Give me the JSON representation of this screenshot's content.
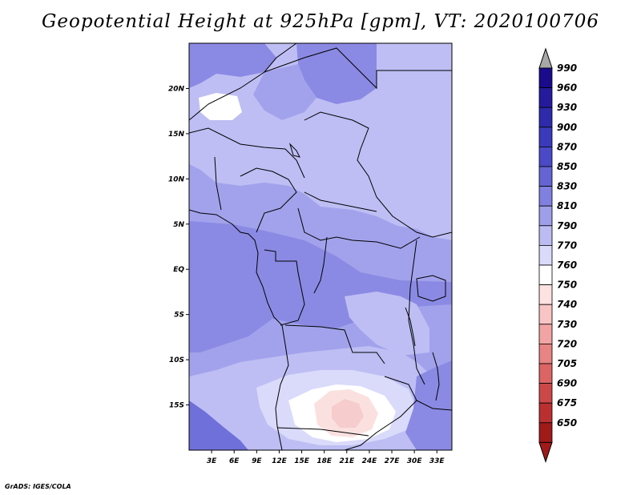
{
  "title": "Geopotential Height at 925hPa [gpm], VT: 2020100706",
  "credit": "GrADS: IGES/COLA",
  "map": {
    "lon_range": [
      0,
      35
    ],
    "lat_range": [
      -20,
      25
    ],
    "lat_ticks": [
      {
        "lat": 20,
        "label": "20N"
      },
      {
        "lat": 15,
        "label": "15N"
      },
      {
        "lat": 10,
        "label": "10N"
      },
      {
        "lat": 5,
        "label": "5N"
      },
      {
        "lat": 0,
        "label": "EQ"
      },
      {
        "lat": -5,
        "label": "5S"
      },
      {
        "lat": -10,
        "label": "10S"
      },
      {
        "lat": -15,
        "label": "15S"
      }
    ],
    "lon_ticks": [
      {
        "lon": 3,
        "label": "3E"
      },
      {
        "lon": 6,
        "label": "6E"
      },
      {
        "lon": 9,
        "label": "9E"
      },
      {
        "lon": 12,
        "label": "12E"
      },
      {
        "lon": 15,
        "label": "15E"
      },
      {
        "lon": 18,
        "label": "18E"
      },
      {
        "lon": 21,
        "label": "21E"
      },
      {
        "lon": 24,
        "label": "24E"
      },
      {
        "lon": 27,
        "label": "27E"
      },
      {
        "lon": 30,
        "label": "30E"
      },
      {
        "lon": 33,
        "label": "33E"
      }
    ]
  },
  "colorbar": {
    "levels": [
      {
        "label": "990",
        "color": "#1a0a8c"
      },
      {
        "label": "960",
        "color": "#241a9c"
      },
      {
        "label": "930",
        "color": "#2e2aac"
      },
      {
        "label": "900",
        "color": "#3a3abc"
      },
      {
        "label": "870",
        "color": "#4a4ac8"
      },
      {
        "label": "850",
        "color": "#6464d4"
      },
      {
        "label": "830",
        "color": "#8080e0"
      },
      {
        "label": "810",
        "color": "#9e9eea"
      },
      {
        "label": "790",
        "color": "#bcbcf2"
      },
      {
        "label": "770",
        "color": "#dadafa"
      },
      {
        "label": "760",
        "color": "#ffffff"
      },
      {
        "label": "750",
        "color": "#fde2e2"
      },
      {
        "label": "740",
        "color": "#f9c4c4"
      },
      {
        "label": "730",
        "color": "#f2a4a4"
      },
      {
        "label": "720",
        "color": "#e88484"
      },
      {
        "label": "705",
        "color": "#dc6464"
      },
      {
        "label": "690",
        "color": "#cc4848"
      },
      {
        "label": "675",
        "color": "#ba3030"
      },
      {
        "label": "650",
        "color": "#a01a1a"
      }
    ],
    "top_arrow_color": "#a8a8a8",
    "bottom_arrow_color": "#a01a1a"
  },
  "field_colors": {
    "c830": "#8a8ae4",
    "c810": "#a2a2ec",
    "c790": "#bebef4",
    "c770": "#dadafa",
    "c760": "#ffffff",
    "c750": "#fbe0e0",
    "c740": "#f6cccc",
    "c850": "#7070da",
    "border": "#000000"
  }
}
